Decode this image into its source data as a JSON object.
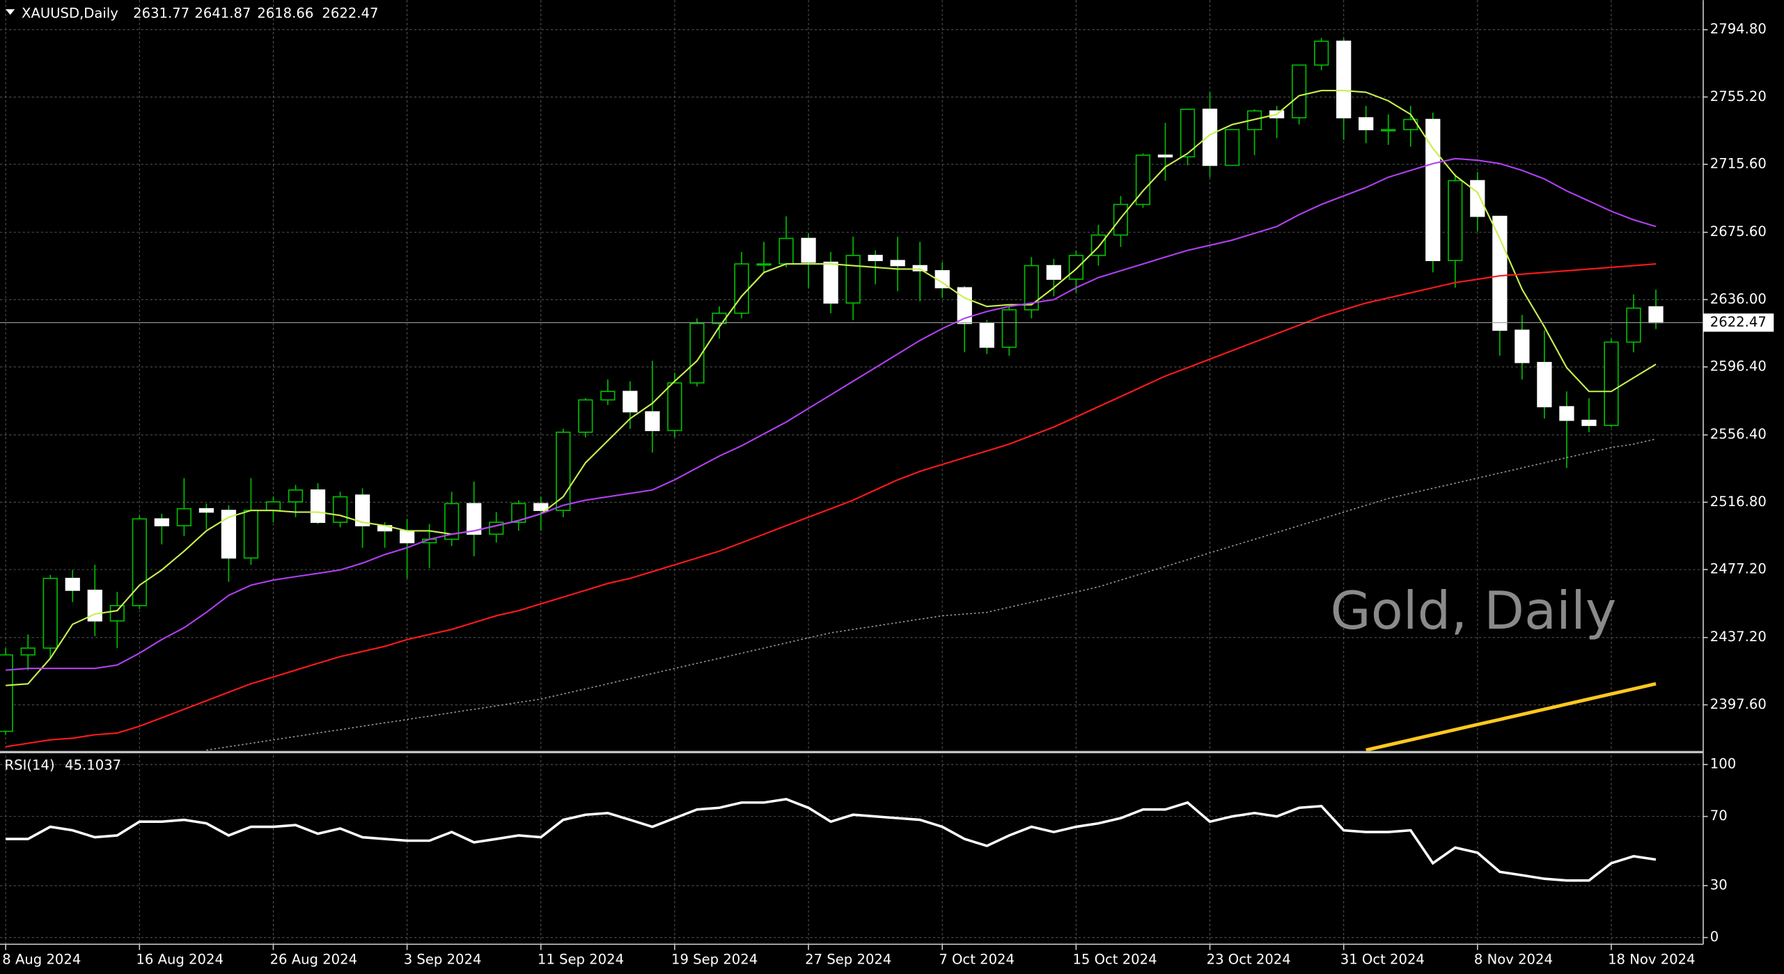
{
  "chart_data": [
    {
      "type": "candlestick",
      "symbol": "XAUUSD,Daily",
      "title": "Gold, Daily",
      "categories": [
        "8 Aug 2024",
        null,
        null,
        null,
        null,
        null,
        "16 Aug 2024",
        null,
        null,
        null,
        null,
        null,
        "26 Aug 2024",
        null,
        null,
        null,
        null,
        null,
        "3 Sep 2024",
        null,
        null,
        null,
        null,
        null,
        "11 Sep 2024",
        null,
        null,
        null,
        null,
        null,
        "19 Sep 2024",
        null,
        null,
        null,
        null,
        null,
        "27 Sep 2024",
        null,
        null,
        null,
        null,
        null,
        "7 Oct 2024",
        null,
        null,
        null,
        null,
        null,
        "15 Oct 2024",
        null,
        null,
        null,
        null,
        null,
        "23 Oct 2024",
        null,
        null,
        null,
        null,
        null,
        "31 Oct 2024",
        null,
        null,
        null,
        null,
        null,
        "8 Nov 2024",
        null,
        null,
        null,
        null,
        null,
        "18 Nov 2024",
        null,
        null
      ],
      "open": [
        2382,
        2427,
        2431,
        2472,
        2465,
        2447,
        2456,
        2507,
        2503,
        2513,
        2512,
        2484,
        2512,
        2517,
        2524,
        2505,
        2521,
        2503,
        2500,
        2493,
        2495,
        2516,
        2498,
        2505,
        2516,
        2512,
        2558,
        2577,
        2582,
        2570,
        2559,
        2587,
        2622,
        2628,
        2657,
        2657,
        2672,
        2658,
        2634,
        2662,
        2659,
        2656,
        2653,
        2643,
        2622,
        2608,
        2630,
        2656,
        2648,
        2662,
        2674,
        2692,
        2721,
        2720,
        2748,
        2715,
        2736,
        2747,
        2743,
        2774,
        2788,
        2743,
        2736,
        2736,
        2742,
        2659,
        2706,
        2685,
        2618,
        2599,
        2573,
        2565,
        2562,
        2611,
        2631.77
      ],
      "high": [
        2431,
        2439,
        2474,
        2477,
        2480,
        2464,
        2509,
        2510,
        2531,
        2516,
        2515,
        2531,
        2520,
        2527,
        2528,
        2523,
        2525,
        2505,
        2507,
        2504,
        2523,
        2529,
        2511,
        2518,
        2520,
        2560,
        2578,
        2589,
        2588,
        2600,
        2593,
        2625,
        2632,
        2664,
        2670,
        2685,
        2675,
        2664,
        2673,
        2665,
        2673,
        2670,
        2658,
        2644,
        2624,
        2632,
        2661,
        2660,
        2665,
        2680,
        2697,
        2722,
        2740,
        2748,
        2758,
        2736,
        2748,
        2750,
        2774,
        2790,
        2790,
        2750,
        2745,
        2750,
        2746,
        2710,
        2711,
        2685,
        2627,
        2618,
        2582,
        2578,
        2613,
        2639,
        2641.87
      ],
      "low": [
        2380,
        2418,
        2425,
        2458,
        2438,
        2431,
        2454,
        2492,
        2497,
        2501,
        2470,
        2480,
        2505,
        2508,
        2504,
        2502,
        2490,
        2490,
        2472,
        2478,
        2491,
        2485,
        2493,
        2500,
        2500,
        2508,
        2555,
        2574,
        2560,
        2546,
        2555,
        2585,
        2613,
        2625,
        2652,
        2655,
        2643,
        2628,
        2624,
        2645,
        2641,
        2635,
        2637,
        2605,
        2604,
        2603,
        2625,
        2638,
        2640,
        2656,
        2667,
        2690,
        2706,
        2715,
        2708,
        2715,
        2721,
        2731,
        2739,
        2771,
        2730,
        2728,
        2727,
        2726,
        2652,
        2643,
        2676,
        2603,
        2589,
        2566,
        2537,
        2558,
        2561,
        2605,
        2618.66
      ],
      "close": [
        2427,
        2431,
        2472,
        2465,
        2447,
        2456,
        2507,
        2503,
        2513,
        2511,
        2484,
        2512,
        2517,
        2524,
        2505,
        2520,
        2503,
        2500,
        2493,
        2495,
        2516,
        2498,
        2505,
        2516,
        2512,
        2558,
        2577,
        2582,
        2570,
        2559,
        2587,
        2622,
        2628,
        2657,
        2657,
        2672,
        2658,
        2634,
        2662,
        2659,
        2656,
        2653,
        2643,
        2622,
        2608,
        2630,
        2656,
        2648,
        2662,
        2674,
        2692,
        2721,
        2720,
        2748,
        2715,
        2736,
        2747,
        2743,
        2774,
        2788,
        2743,
        2736,
        2736,
        2742,
        2659,
        2706,
        2685,
        2618,
        2599,
        2573,
        2565,
        2562,
        2611,
        2631,
        2622.47
      ],
      "up_color": "#00c000",
      "down_color": "#ffffff",
      "series": [
        {
          "color": "#c8f050",
          "values": [
            2409,
            2410,
            2425,
            2445,
            2451,
            2453,
            2468,
            2477,
            2488,
            2500,
            2508,
            2512,
            2512,
            2511,
            2511,
            2509,
            2505,
            2503,
            2500,
            2500,
            2498,
            2500,
            2503,
            2506,
            2510,
            2520,
            2540,
            2553,
            2566,
            2575,
            2588,
            2600,
            2620,
            2638,
            2652,
            2657,
            2657,
            2657,
            2656,
            2655,
            2654,
            2654,
            2646,
            2637,
            2632,
            2633,
            2633,
            2643,
            2654,
            2667,
            2684,
            2700,
            2714,
            2722,
            2733,
            2739,
            2742,
            2745,
            2756,
            2759,
            2759,
            2758,
            2753,
            2745,
            2725,
            2709,
            2699,
            2672,
            2642,
            2620,
            2596,
            2582,
            2582,
            2590,
            2598
          ]
        },
        {
          "color": "#b040f0",
          "values": [
            2418,
            2419,
            2419,
            2419,
            2419,
            2421,
            2428,
            2436,
            2443,
            2452,
            2462,
            2468,
            2471,
            2473,
            2475,
            2477,
            2481,
            2486,
            2490,
            2495,
            2498,
            2500,
            2503,
            2506,
            2510,
            2515,
            2518,
            2520,
            2522,
            2524,
            2530,
            2537,
            2544,
            2550,
            2557,
            2564,
            2572,
            2580,
            2588,
            2596,
            2604,
            2612,
            2619,
            2625,
            2629,
            2632,
            2634,
            2636,
            2643,
            2649,
            2653,
            2657,
            2661,
            2665,
            2668,
            2671,
            2675,
            2679,
            2686,
            2692,
            2697,
            2702,
            2708,
            2712,
            2716,
            2719,
            2718,
            2716,
            2712,
            2707,
            2700,
            2694,
            2688,
            2683,
            2679
          ]
        },
        {
          "color": "#ff1a1a",
          "values": [
            2373,
            2375,
            2377,
            2378,
            2380,
            2381,
            2385,
            2390,
            2395,
            2400,
            2405,
            2410,
            2414,
            2418,
            2422,
            2426,
            2429,
            2432,
            2436,
            2439,
            2442,
            2446,
            2450,
            2453,
            2457,
            2461,
            2465,
            2469,
            2472,
            2476,
            2480,
            2484,
            2488,
            2493,
            2498,
            2503,
            2508,
            2513,
            2518,
            2524,
            2530,
            2535,
            2539,
            2543,
            2547,
            2551,
            2556,
            2561,
            2567,
            2573,
            2579,
            2585,
            2591,
            2596,
            2601,
            2606,
            2611,
            2616,
            2621,
            2626,
            2630,
            2634,
            2637,
            2640,
            2643,
            2646,
            2648,
            2650,
            2651,
            2652,
            2653,
            2654,
            2655,
            2656,
            2657
          ]
        },
        {
          "color": "#9a9a9a",
          "style": "dotted",
          "values": [
            null,
            null,
            null,
            null,
            null,
            null,
            null,
            null,
            null,
            2371,
            2373,
            2375,
            2377,
            2379,
            2381,
            2383,
            2385,
            2387,
            2389,
            2391,
            2393,
            2395,
            2397,
            2399,
            2401,
            2404,
            2407,
            2410,
            2413,
            2416,
            2419,
            2422,
            2425,
            2428,
            2431,
            2434,
            2437,
            2440,
            2442,
            2444,
            2446,
            2448,
            2450,
            2451,
            2452,
            2455,
            2458,
            2461,
            2464,
            2467,
            2471,
            2475,
            2479,
            2483,
            2487,
            2491,
            2495,
            2499,
            2503,
            2507,
            2511,
            2515,
            2519,
            2522,
            2525,
            2528,
            2531,
            2534,
            2537,
            2540,
            2543,
            2546,
            2549,
            2551,
            2554
          ]
        },
        {
          "color": "#ffc820",
          "style": "thick",
          "values": [
            null,
            null,
            null,
            null,
            null,
            null,
            null,
            null,
            null,
            null,
            null,
            null,
            null,
            null,
            null,
            null,
            null,
            null,
            null,
            null,
            null,
            null,
            null,
            null,
            null,
            null,
            null,
            null,
            null,
            null,
            null,
            null,
            null,
            null,
            null,
            null,
            null,
            null,
            null,
            null,
            null,
            null,
            null,
            null,
            null,
            null,
            null,
            null,
            null,
            null,
            null,
            null,
            null,
            null,
            null,
            null,
            null,
            null,
            null,
            null,
            null,
            2371,
            2374,
            2377,
            2380,
            2383,
            2386,
            2389,
            2392,
            2395,
            2398,
            2401,
            2404,
            2407,
            2410
          ]
        }
      ],
      "ylim": [
        2370.5,
        2812.2
      ],
      "yticks": [
        {
          "value": 2794.8,
          "label": "2794.80"
        },
        {
          "value": 2755.2,
          "label": "2755.20"
        },
        {
          "value": 2715.6,
          "label": "2715.60"
        },
        {
          "value": 2675.6,
          "label": "2675.60"
        },
        {
          "value": 2636,
          "label": "2636.00"
        },
        {
          "value": 2596.4,
          "label": "2596.40"
        },
        {
          "value": 2556.4,
          "label": "2556.40"
        },
        {
          "value": 2516.8,
          "label": "2516.80"
        },
        {
          "value": 2477.2,
          "label": "2477.20"
        },
        {
          "value": 2437.2,
          "label": "2437.20"
        },
        {
          "value": 2397.6,
          "label": "2397.60"
        }
      ],
      "grid": true
    },
    {
      "type": "line",
      "name": "RSI(14)",
      "color": "#ffffff",
      "values": [
        57,
        57,
        64,
        62,
        58,
        59,
        67,
        67,
        68,
        66,
        59,
        64,
        64,
        65,
        60,
        63,
        58,
        57,
        56,
        56,
        61,
        55,
        57,
        59,
        58,
        68,
        71,
        72,
        68,
        64,
        69,
        74,
        75,
        78,
        78,
        80,
        75,
        67,
        71,
        70,
        69,
        68,
        64,
        57,
        53,
        59,
        64,
        61,
        64,
        66,
        69,
        74,
        74,
        78,
        67,
        70,
        72,
        70,
        75,
        76,
        62,
        61,
        61,
        62,
        43,
        52,
        49,
        38,
        36,
        34,
        33,
        33,
        43,
        47,
        45.1037
      ],
      "ylim": [
        -3.9,
        105.9
      ],
      "yticks": [
        100,
        70,
        30,
        0
      ],
      "grid": true
    }
  ]
}
